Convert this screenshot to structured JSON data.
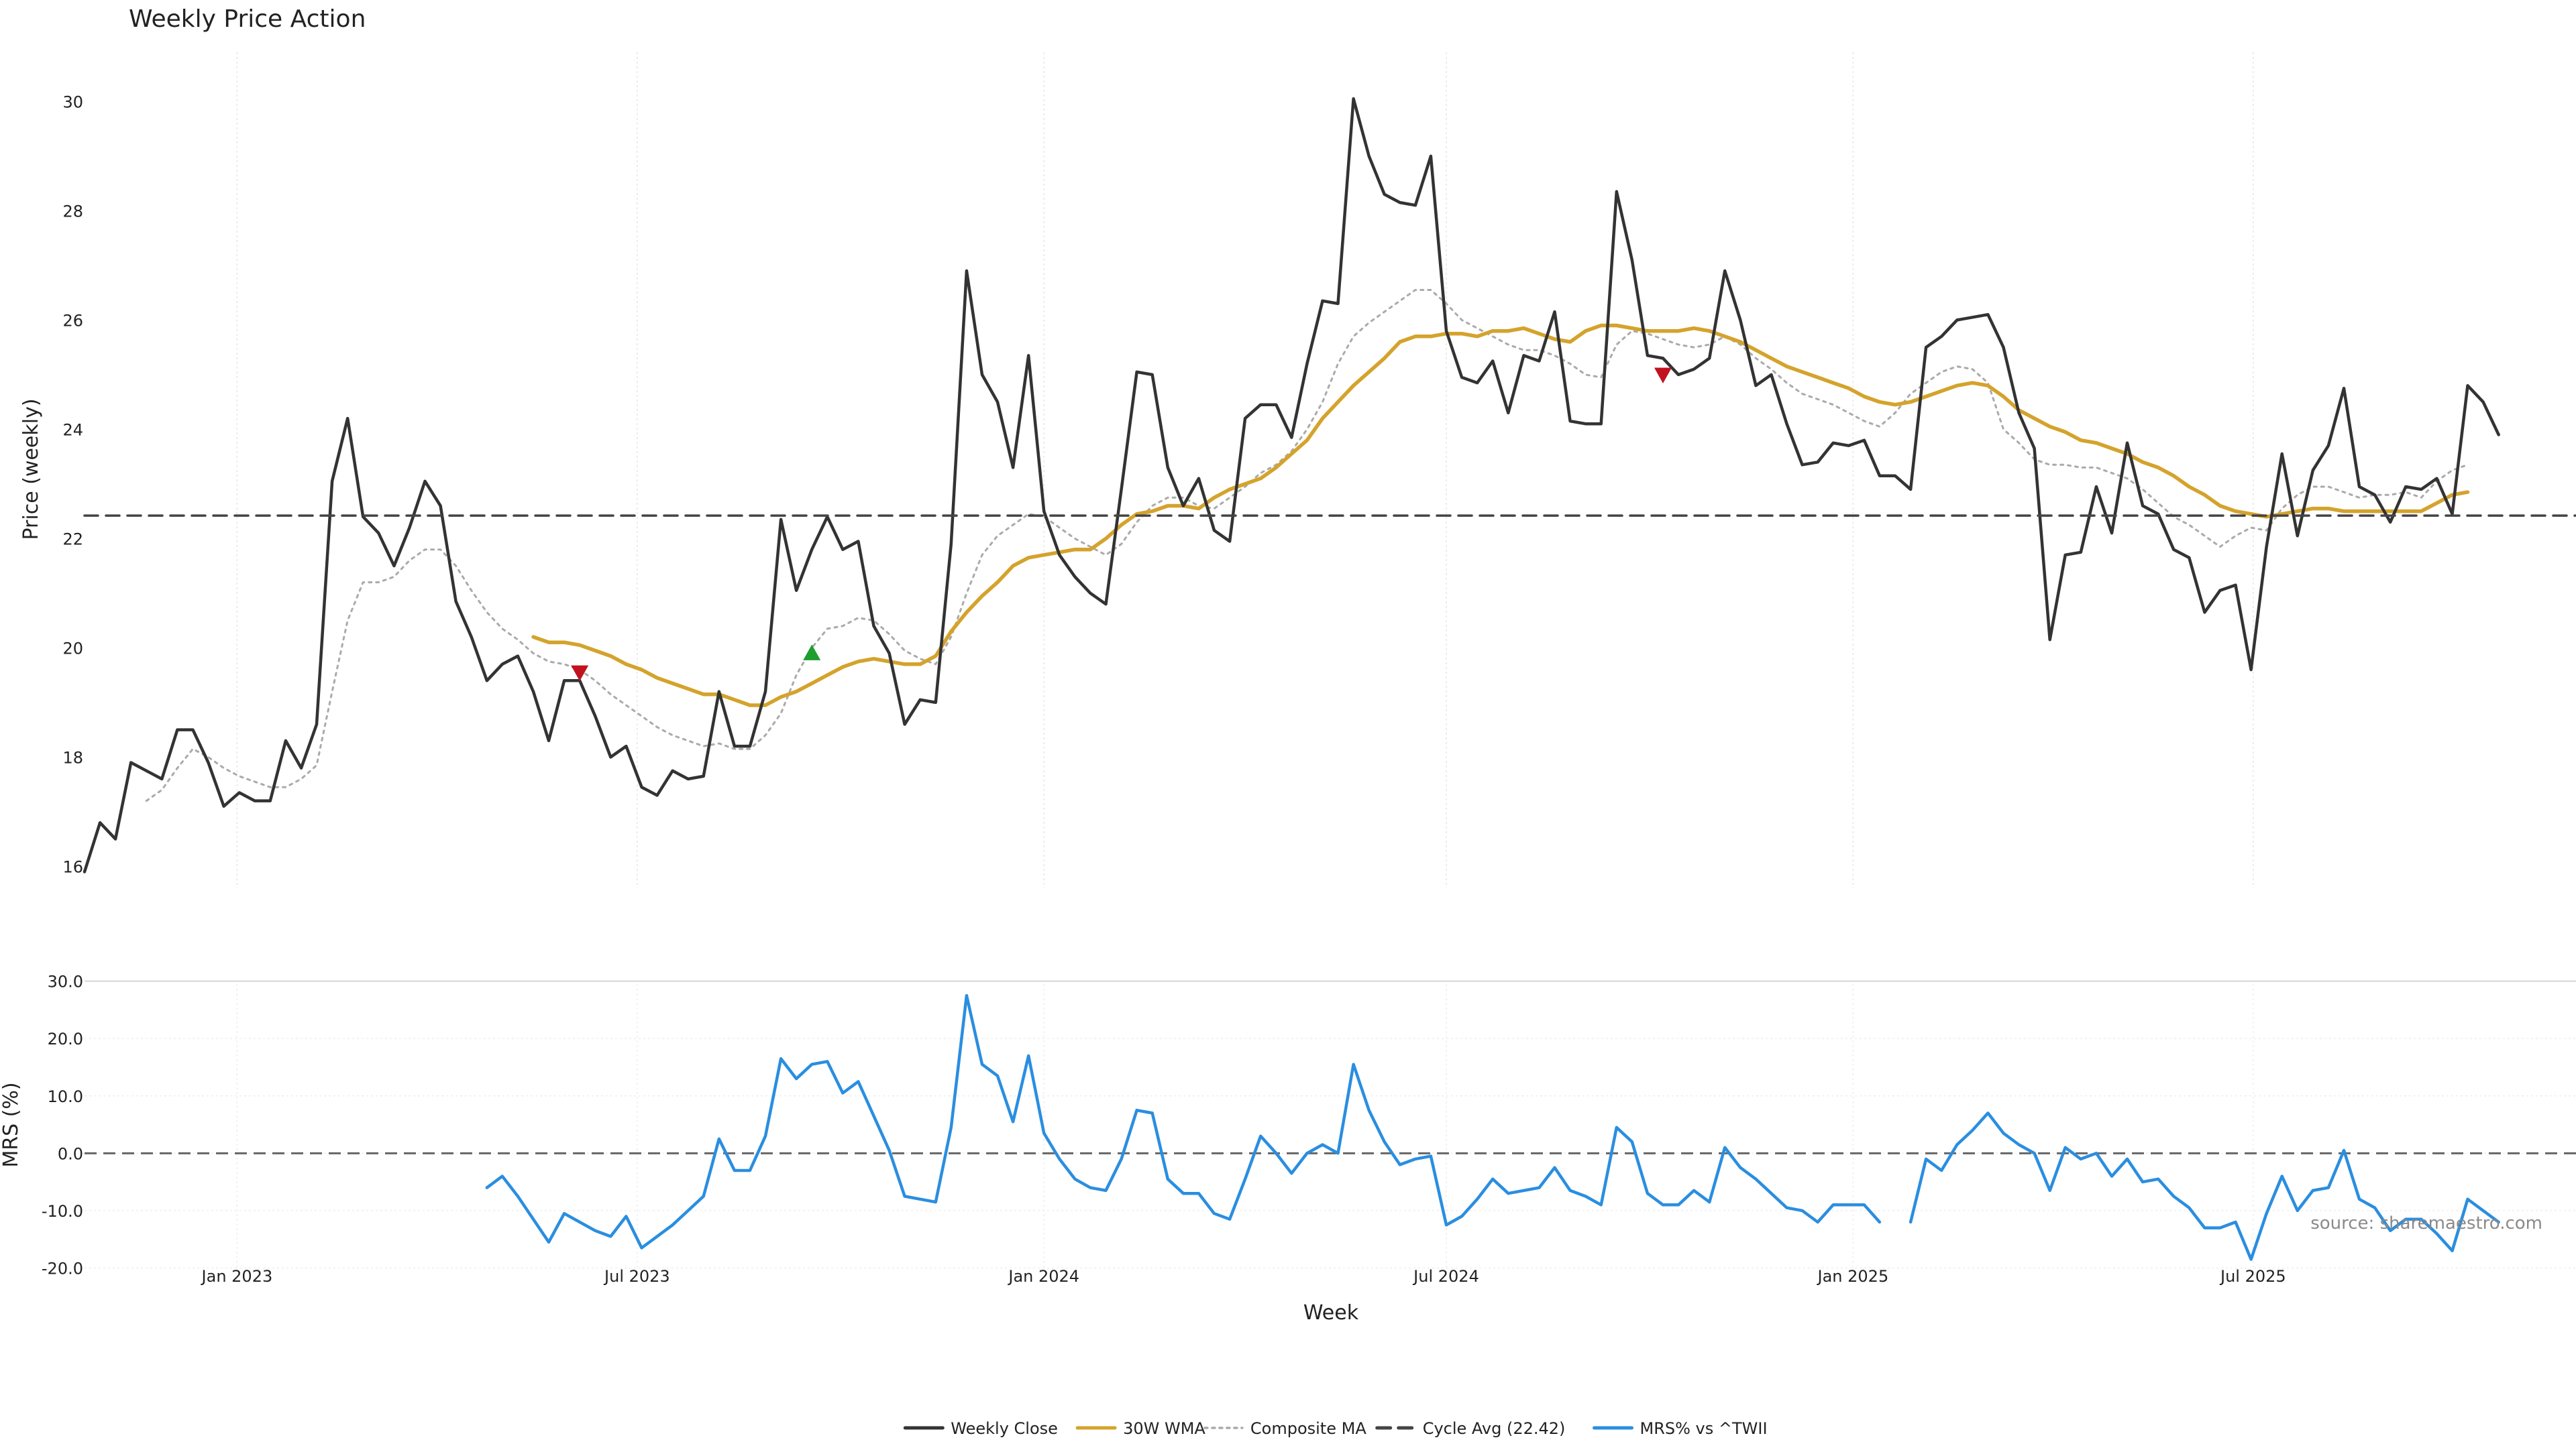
{
  "chart_data": {
    "type": "line",
    "title": "Weekly Price Action",
    "source": "source: sharemaestro.com",
    "xlabel": "Week",
    "x_ticks": [
      "Jan 2023",
      "Jul 2023",
      "Jan 2024",
      "Jul 2024",
      "Jan 2025",
      "Jul 2025"
    ],
    "x_range": [
      "2022-10-24",
      "2025-11-24"
    ],
    "x": [
      "2022-10-24",
      "2022-10-31",
      "2022-11-07",
      "2022-11-14",
      "2022-11-21",
      "2022-11-28",
      "2022-12-05",
      "2022-12-12",
      "2022-12-19",
      "2022-12-26",
      "2023-01-02",
      "2023-01-09",
      "2023-01-16",
      "2023-01-23",
      "2023-01-30",
      "2023-02-06",
      "2023-02-13",
      "2023-02-20",
      "2023-02-27",
      "2023-03-06",
      "2023-03-13",
      "2023-03-20",
      "2023-03-27",
      "2023-04-03",
      "2023-04-10",
      "2023-04-17",
      "2023-04-24",
      "2023-05-01",
      "2023-05-08",
      "2023-05-15",
      "2023-05-22",
      "2023-05-29",
      "2023-06-05",
      "2023-06-12",
      "2023-06-19",
      "2023-06-26",
      "2023-07-03",
      "2023-07-10",
      "2023-07-17",
      "2023-07-24",
      "2023-07-31",
      "2023-08-07",
      "2023-08-14",
      "2023-08-21",
      "2023-08-28",
      "2023-09-04",
      "2023-09-11",
      "2023-09-18",
      "2023-09-25",
      "2023-10-02",
      "2023-10-09",
      "2023-10-16",
      "2023-10-23",
      "2023-10-30",
      "2023-11-06",
      "2023-11-13",
      "2023-11-20",
      "2023-11-27",
      "2023-12-04",
      "2023-12-11",
      "2023-12-18",
      "2023-12-25",
      "2024-01-01",
      "2024-01-08",
      "2024-01-15",
      "2024-01-22",
      "2024-01-29",
      "2024-02-05",
      "2024-02-12",
      "2024-02-19",
      "2024-02-26",
      "2024-03-04",
      "2024-03-11",
      "2024-03-18",
      "2024-03-25",
      "2024-04-01",
      "2024-04-08",
      "2024-04-15",
      "2024-04-22",
      "2024-04-29",
      "2024-05-06",
      "2024-05-13",
      "2024-05-20",
      "2024-05-27",
      "2024-06-03",
      "2024-06-10",
      "2024-06-17",
      "2024-06-24",
      "2024-07-01",
      "2024-07-08",
      "2024-07-15",
      "2024-07-22",
      "2024-07-29",
      "2024-08-05",
      "2024-08-12",
      "2024-08-19",
      "2024-08-26",
      "2024-09-02",
      "2024-09-09",
      "2024-09-16",
      "2024-09-23",
      "2024-09-30",
      "2024-10-07",
      "2024-10-14",
      "2024-10-21",
      "2024-10-28",
      "2024-11-04",
      "2024-11-11",
      "2024-11-18",
      "2024-11-25",
      "2024-12-02",
      "2024-12-09",
      "2024-12-16",
      "2024-12-23",
      "2024-12-30",
      "2025-01-06",
      "2025-01-13",
      "2025-01-20",
      "2025-01-27",
      "2025-02-03",
      "2025-02-10",
      "2025-02-17",
      "2025-02-24",
      "2025-03-03",
      "2025-03-10",
      "2025-03-17",
      "2025-03-24",
      "2025-03-31",
      "2025-04-07",
      "2025-04-14",
      "2025-04-21",
      "2025-04-28",
      "2025-05-05",
      "2025-05-12",
      "2025-05-19",
      "2025-05-26",
      "2025-06-02",
      "2025-06-09",
      "2025-06-16",
      "2025-06-23",
      "2025-06-30",
      "2025-07-07",
      "2025-07-14",
      "2025-07-21",
      "2025-07-28",
      "2025-08-04",
      "2025-08-11",
      "2025-08-18",
      "2025-08-25",
      "2025-09-01",
      "2025-09-08",
      "2025-09-15",
      "2025-09-22",
      "2025-09-29",
      "2025-10-06",
      "2025-10-13",
      "2025-10-20",
      "2025-10-27",
      "2025-11-03",
      "2025-11-10",
      "2025-11-17",
      "2025-11-24"
    ],
    "price_panel": {
      "ylabel": "Price (weekly)",
      "ylim": [
        15.6,
        30.9
      ],
      "yticks": [
        "16",
        "18",
        "20",
        "22",
        "24",
        "26",
        "28",
        "30"
      ],
      "grid": true,
      "series": [
        {
          "name": "Weekly Close",
          "color": "#333333",
          "style": "solid",
          "values": [
            15.9,
            16.8,
            16.5,
            17.9,
            17.75,
            17.6,
            18.5,
            18.5,
            17.9,
            17.1,
            17.35,
            17.2,
            17.2,
            18.3,
            17.8,
            18.6,
            23.05,
            24.2,
            22.4,
            22.1,
            21.5,
            22.2,
            23.05,
            22.6,
            20.85,
            20.2,
            19.4,
            19.7,
            19.85,
            19.2,
            18.3,
            19.4,
            19.4,
            18.75,
            18.0,
            18.2,
            17.45,
            17.3,
            17.75,
            17.6,
            17.65,
            19.2,
            18.2,
            18.2,
            19.2,
            22.35,
            21.05,
            21.8,
            22.4,
            21.8,
            21.95,
            20.4,
            19.9,
            18.6,
            19.05,
            19.0,
            21.9,
            26.9,
            25.0,
            24.5,
            23.3,
            25.35,
            22.5,
            21.7,
            21.3,
            21.0,
            20.8,
            22.9,
            25.05,
            25.0,
            23.3,
            22.6,
            23.1,
            22.15,
            21.95,
            24.2,
            24.45,
            24.45,
            23.85,
            25.2,
            26.35,
            26.3,
            30.05,
            29.0,
            28.3,
            28.15,
            28.1,
            29.0,
            25.8,
            24.95,
            24.85,
            25.25,
            24.3,
            25.35,
            25.25,
            26.15,
            24.15,
            24.1,
            24.1,
            28.35,
            27.1,
            25.35,
            25.3,
            25.0,
            25.1,
            25.3,
            26.9,
            26.0,
            24.8,
            25.0,
            24.1,
            23.35,
            23.4,
            23.75,
            23.7,
            23.8,
            23.15,
            23.15,
            22.9,
            25.5,
            25.7,
            26.0,
            26.05,
            26.1,
            25.5,
            24.3,
            23.65,
            20.15,
            21.7,
            21.75,
            22.95,
            22.1,
            23.75,
            22.6,
            22.45,
            21.8,
            21.65,
            20.65,
            21.05,
            21.15,
            19.6,
            21.85,
            23.55,
            22.05,
            23.25,
            23.7,
            24.75,
            22.95,
            22.8,
            22.3,
            22.95,
            22.9,
            23.1,
            22.45,
            24.8,
            24.5,
            23.9
          ]
        },
        {
          "name": "30W WMA",
          "color": "#d4a32c",
          "style": "solid",
          "values": [
            null,
            null,
            null,
            null,
            null,
            null,
            null,
            null,
            null,
            null,
            null,
            null,
            null,
            null,
            null,
            null,
            null,
            null,
            null,
            null,
            null,
            null,
            null,
            null,
            null,
            null,
            null,
            null,
            null,
            20.2,
            20.1,
            20.1,
            20.05,
            19.95,
            19.85,
            19.7,
            19.6,
            19.45,
            19.35,
            19.25,
            19.15,
            19.15,
            19.05,
            18.95,
            18.95,
            19.1,
            19.2,
            19.35,
            19.5,
            19.65,
            19.75,
            19.8,
            19.75,
            19.7,
            19.7,
            19.85,
            20.3,
            20.65,
            20.95,
            21.2,
            21.5,
            21.65,
            21.7,
            21.75,
            21.8,
            21.8,
            22.0,
            22.25,
            22.45,
            22.5,
            22.6,
            22.6,
            22.55,
            22.75,
            22.9,
            23.0,
            23.1,
            23.3,
            23.55,
            23.8,
            24.2,
            24.5,
            24.8,
            25.05,
            25.3,
            25.6,
            25.7,
            25.7,
            25.75,
            25.75,
            25.7,
            25.8,
            25.8,
            25.85,
            25.75,
            25.65,
            25.6,
            25.8,
            25.9,
            25.9,
            25.85,
            25.8,
            25.8,
            25.8,
            25.85,
            25.8,
            25.7,
            25.6,
            25.45,
            25.3,
            25.15,
            25.05,
            24.95,
            24.85,
            24.75,
            24.6,
            24.5,
            24.45,
            24.5,
            24.6,
            24.7,
            24.8,
            24.85,
            24.8,
            24.6,
            24.35,
            24.2,
            24.05,
            23.95,
            23.8,
            23.75,
            23.65,
            23.55,
            23.4,
            23.3,
            23.15,
            22.95,
            22.8,
            22.6,
            22.5,
            22.45,
            22.4,
            22.45,
            22.5,
            22.55,
            22.55,
            22.5,
            22.5,
            22.5,
            22.5,
            22.5,
            22.5,
            22.65,
            22.8,
            22.85
          ]
        },
        {
          "name": "Composite MA",
          "color": "#aaaaaa",
          "style": "dotted",
          "values": [
            null,
            null,
            null,
            null,
            17.2,
            17.4,
            17.8,
            18.15,
            18.0,
            17.8,
            17.65,
            17.55,
            17.45,
            17.45,
            17.6,
            17.85,
            19.2,
            20.5,
            21.2,
            21.2,
            21.3,
            21.6,
            21.8,
            21.8,
            21.5,
            21.05,
            20.65,
            20.35,
            20.15,
            19.9,
            19.75,
            19.7,
            19.6,
            19.4,
            19.15,
            18.95,
            18.75,
            18.55,
            18.4,
            18.3,
            18.2,
            18.25,
            18.15,
            18.15,
            18.4,
            18.8,
            19.5,
            20.0,
            20.35,
            20.4,
            20.55,
            20.5,
            20.25,
            19.95,
            19.8,
            19.7,
            20.2,
            21.0,
            21.7,
            22.05,
            22.25,
            22.45,
            22.4,
            22.2,
            22.0,
            21.85,
            21.7,
            21.9,
            22.3,
            22.6,
            22.75,
            22.75,
            22.6,
            22.55,
            22.75,
            22.95,
            23.2,
            23.35,
            23.6,
            24.0,
            24.5,
            25.2,
            25.7,
            25.95,
            26.15,
            26.35,
            26.55,
            26.55,
            26.3,
            26.0,
            25.85,
            25.7,
            25.55,
            25.45,
            25.45,
            25.35,
            25.2,
            25.0,
            24.95,
            25.55,
            25.8,
            25.75,
            25.65,
            25.55,
            25.5,
            25.55,
            25.7,
            25.55,
            25.3,
            25.1,
            24.85,
            24.65,
            24.55,
            24.45,
            24.3,
            24.15,
            24.05,
            24.3,
            24.65,
            24.85,
            25.05,
            25.15,
            25.1,
            24.85,
            24.0,
            23.75,
            23.45,
            23.35,
            23.35,
            23.3,
            23.3,
            23.2,
            23.1,
            22.9,
            22.65,
            22.4,
            22.25,
            22.05,
            21.85,
            22.05,
            22.2,
            22.15,
            22.55,
            22.8,
            22.95,
            22.95,
            22.85,
            22.75,
            22.8,
            22.8,
            22.85,
            22.75,
            23.05,
            23.25,
            23.35
          ]
        },
        {
          "name": "Cycle Avg (22.42)",
          "color": "#444444",
          "style": "dashed",
          "value": 22.42
        }
      ],
      "markers": [
        {
          "type": "down",
          "color": "#c1121f",
          "x": "2023-06-05",
          "y": 19.55
        },
        {
          "type": "up",
          "color": "#1e9e2e",
          "x": "2023-09-18",
          "y": 19.9
        },
        {
          "type": "down",
          "color": "#c1121f",
          "x": "2024-10-07",
          "y": 25.0
        }
      ]
    },
    "mrs_panel": {
      "ylabel": "MRS (%)",
      "ylim": [
        -21,
        33
      ],
      "yticks": [
        "30.0",
        "20.0",
        "10.0",
        "0.0",
        "-10.0",
        "-20.0"
      ],
      "zero_line": true,
      "series": [
        {
          "name": "MRS% vs ^TWII",
          "color": "#2a8ee0",
          "style": "solid",
          "values": [
            null,
            null,
            null,
            null,
            null,
            null,
            null,
            null,
            null,
            null,
            null,
            null,
            null,
            null,
            null,
            null,
            null,
            null,
            null,
            null,
            null,
            null,
            null,
            null,
            null,
            null,
            -6,
            -4,
            -7.5,
            -11.5,
            -15.5,
            -10.5,
            -12,
            -13.5,
            -14.5,
            -11,
            -16.5,
            -14.5,
            -12.5,
            -10,
            -7.5,
            2.5,
            -3,
            -3,
            3,
            16.5,
            13,
            15.5,
            16,
            10.5,
            12.5,
            6.5,
            0.5,
            -7.5,
            -8,
            -8.5,
            4.5,
            27.5,
            15.5,
            13.5,
            5.5,
            17,
            3.5,
            -1,
            -4.5,
            -6,
            -6.5,
            -1,
            7.5,
            7,
            -4.5,
            -7,
            -7,
            -10.5,
            -11.5,
            -4.5,
            3,
            0,
            -3.5,
            0,
            1.5,
            0,
            15.5,
            7.5,
            2,
            -2,
            -1,
            -0.5,
            -12.5,
            -11,
            -8,
            -4.5,
            -7,
            -6.5,
            -6,
            -2.5,
            -6.5,
            -7.5,
            -9,
            4.5,
            2,
            -7,
            -9,
            -9,
            -6.5,
            -8.5,
            1,
            -2.5,
            -4.5,
            -7,
            -9.5,
            -10,
            -12,
            -9,
            -9,
            -9,
            -12,
            null,
            -12,
            -1,
            -3,
            1.5,
            4,
            7,
            3.5,
            1.5,
            0,
            -6.5,
            1,
            -1,
            0,
            -4,
            -1,
            -5,
            -4.5,
            -7.5,
            -9.5,
            -13,
            -13,
            -12,
            -18.5,
            -10.5,
            -4,
            -10,
            -6.5,
            -6,
            0.5,
            -8,
            -9.5,
            -13.5,
            -11.5,
            -11.5,
            -14,
            -17,
            -8,
            -10,
            -12
          ]
        }
      ]
    },
    "legend": {
      "placement": "bottom-center",
      "entries": [
        {
          "label": "Weekly Close",
          "color": "#333333",
          "style": "solid"
        },
        {
          "label": "30W WMA",
          "color": "#d4a32c",
          "style": "solid"
        },
        {
          "label": "Composite MA",
          "color": "#aaaaaa",
          "style": "dotted"
        },
        {
          "label": "Cycle Avg (22.42)",
          "color": "#444444",
          "style": "dashed"
        },
        {
          "label": "MRS% vs ^TWII",
          "color": "#2a8ee0",
          "style": "solid"
        }
      ]
    }
  }
}
